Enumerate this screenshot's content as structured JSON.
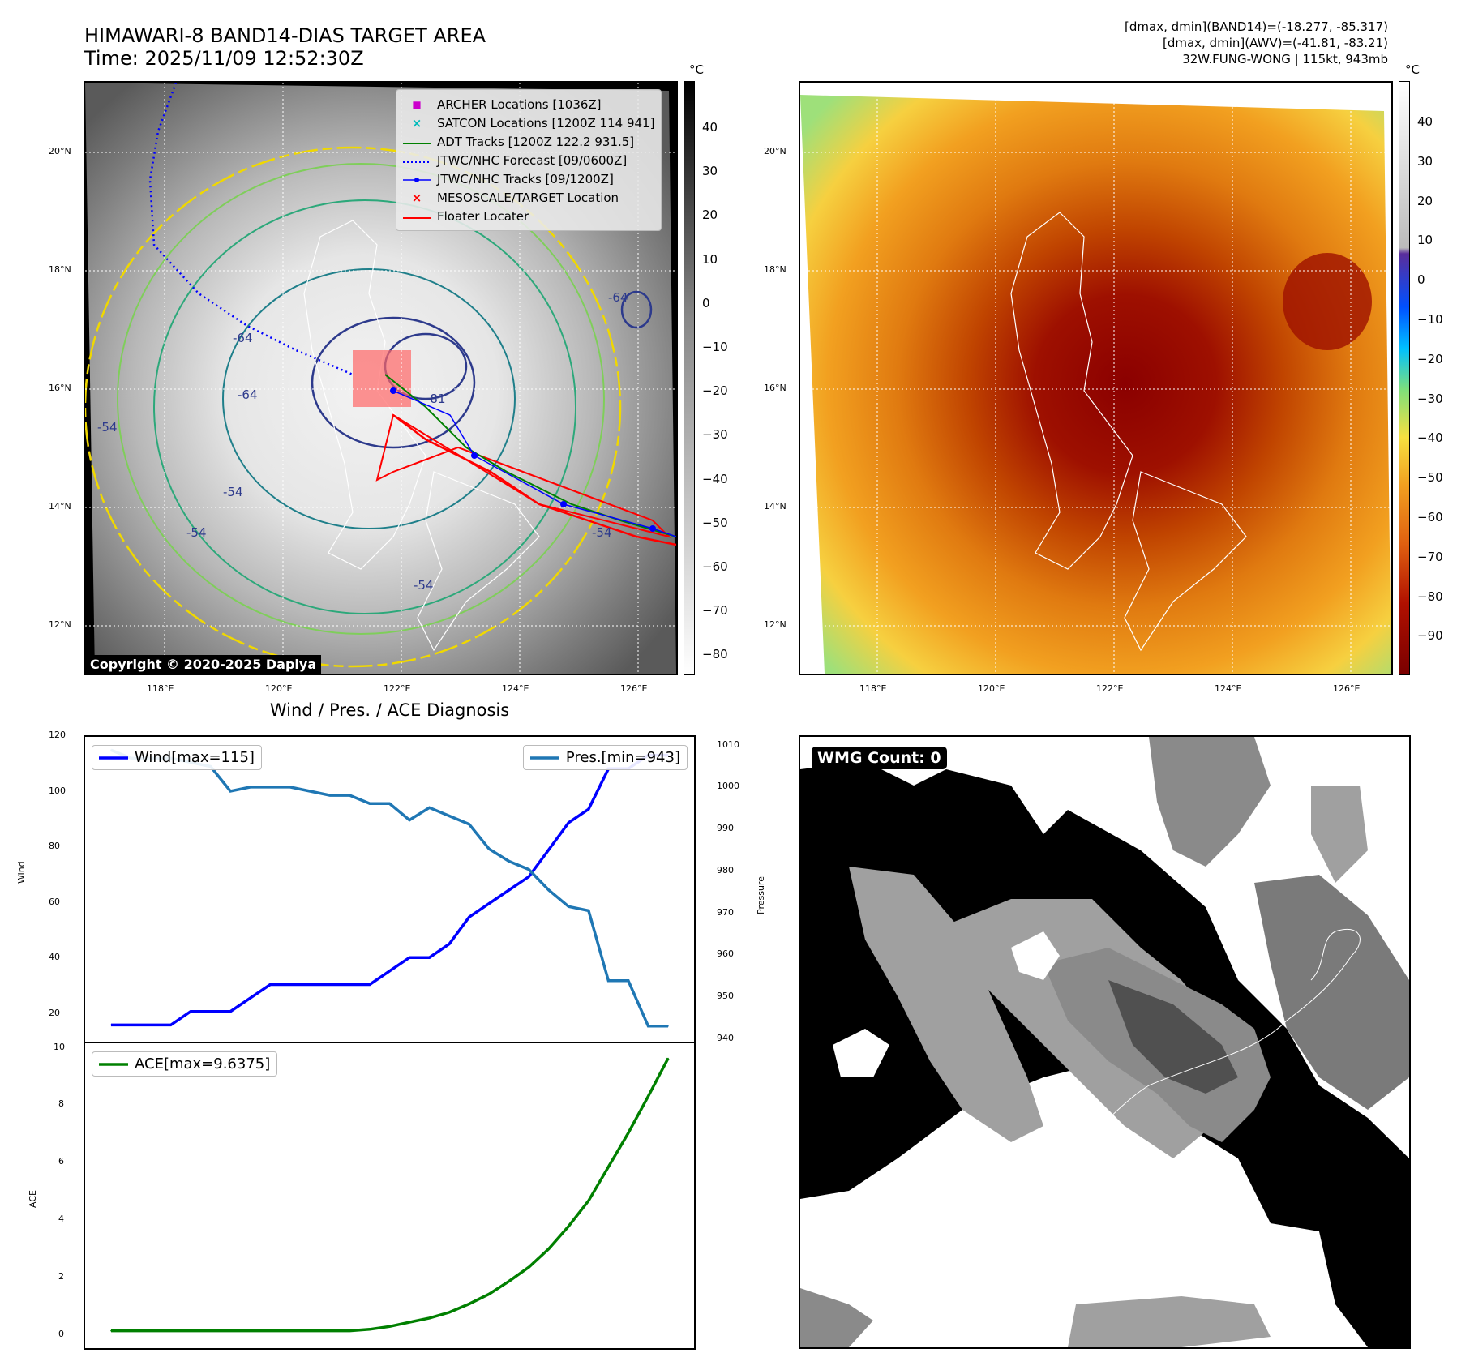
{
  "header": {
    "title_line1": "HIMAWARI-8 BAND14-DIAS TARGET AREA",
    "title_line2": "Time: 2025/11/09 12:52:30Z",
    "info_line1": "[dmax, dmin](BAND14)=(-18.277, -85.317)",
    "info_line2": "[dmax, dmin](AWV)=(-41.81, -83.21)",
    "info_line3": "32W.FUNG-WONG | 115kt, 943mb"
  },
  "maps": {
    "lat_labels": [
      "20°N",
      "18°N",
      "16°N",
      "14°N",
      "12°N"
    ],
    "lon_labels": [
      "118°E",
      "120°E",
      "122°E",
      "124°E",
      "126°E"
    ],
    "copyright": "Copyright © 2020-2025 Dapiya",
    "unit": "°C",
    "left_cbar_ticks": [
      "40",
      "30",
      "20",
      "10",
      "0",
      "−10",
      "−20",
      "−30",
      "−40",
      "−50",
      "−60",
      "−70",
      "−80"
    ],
    "right_cbar_ticks": [
      "40",
      "30",
      "20",
      "10",
      "0",
      "−10",
      "−20",
      "−30",
      "−40",
      "−50",
      "−60",
      "−70",
      "−80",
      "−90"
    ],
    "contour_labels": [
      "-64",
      "-54",
      "-81",
      "-64",
      "-54",
      "-54",
      "-54",
      "-64",
      "-54"
    ],
    "legend": [
      {
        "label": "ARCHER Locations [1036Z]",
        "symbol": "■",
        "color": "#cc00cc"
      },
      {
        "label": "SATCON Locations [1200Z 114 941]",
        "symbol": "×",
        "color": "#00bbbb"
      },
      {
        "label": "ADT Tracks [1200Z 122.2 931.5]",
        "symbol": "line",
        "color": "#008000"
      },
      {
        "label": "JTWC/NHC Forecast [09/0600Z]",
        "symbol": "dotted",
        "color": "#0000ff"
      },
      {
        "label": "JTWC/NHC Tracks [09/1200Z]",
        "symbol": "dotline",
        "color": "#0000ff"
      },
      {
        "label": "MESOSCALE/TARGET Location",
        "symbol": "×",
        "color": "#ff0000"
      },
      {
        "label": "Floater Locater",
        "symbol": "line",
        "color": "#ff0000"
      }
    ]
  },
  "diag": {
    "title": "Wind / Pres. / ACE Diagnosis",
    "wind_legend": "Wind[max=115]",
    "pres_legend": "Pres.[min=943]",
    "ace_legend": "ACE[max=9.6375]",
    "wind_axis_label": "Wind",
    "pres_axis_label": "Pressure",
    "ace_axis_label": "ACE",
    "wind_ticks": [
      "120",
      "100",
      "80",
      "60",
      "40",
      "20"
    ],
    "pres_ticks": [
      "1010",
      "1000",
      "990",
      "980",
      "970",
      "960",
      "950",
      "940"
    ],
    "ace_ticks": [
      "10",
      "8",
      "6",
      "4",
      "2",
      "0"
    ],
    "colors": {
      "wind": "#0000ff",
      "pres": "#1f77b4",
      "ace": "#008000"
    }
  },
  "wmg": {
    "label": "WMG Count: 0"
  },
  "chart_data": [
    {
      "type": "line",
      "title": "Wind / Pres. / ACE Diagnosis",
      "ylabel": "Wind",
      "ylim": [
        10,
        120
      ],
      "series": [
        {
          "name": "Wind[max=115]",
          "axis": "left",
          "values": [
            15,
            15,
            15,
            15,
            20,
            20,
            20,
            25,
            30,
            30,
            30,
            30,
            30,
            30,
            35,
            40,
            40,
            45,
            55,
            60,
            65,
            70,
            80,
            90,
            95,
            110,
            110,
            115,
            115
          ]
        }
      ]
    },
    {
      "type": "line",
      "ylabel": "Pressure",
      "ylim": [
        940,
        1012
      ],
      "series": [
        {
          "name": "Pres.[min=943]",
          "axis": "right",
          "values": [
            1010,
            1008,
            1008,
            1008,
            1007,
            1006,
            1000,
            1001,
            1001,
            1001,
            1000,
            999,
            999,
            997,
            997,
            993,
            996,
            994,
            992,
            986,
            983,
            981,
            976,
            972,
            971,
            954,
            954,
            943,
            943
          ]
        }
      ]
    },
    {
      "type": "line",
      "ylabel": "ACE",
      "ylim": [
        -0.5,
        10
      ],
      "series": [
        {
          "name": "ACE[max=9.6375]",
          "values": [
            0,
            0,
            0,
            0,
            0,
            0,
            0,
            0,
            0,
            0,
            0,
            0,
            0,
            0.05,
            0.15,
            0.3,
            0.45,
            0.65,
            0.95,
            1.3,
            1.75,
            2.25,
            2.9,
            3.7,
            4.6,
            5.8,
            7.0,
            8.3,
            9.6375
          ]
        }
      ]
    }
  ]
}
